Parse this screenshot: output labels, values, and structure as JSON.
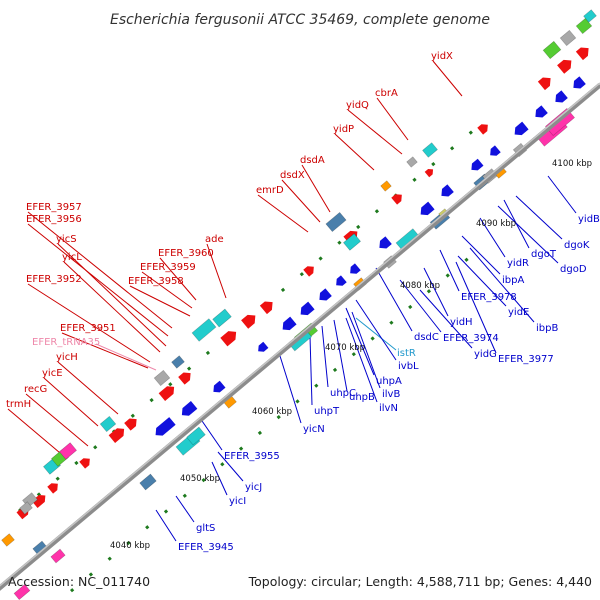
{
  "header": {
    "title": "Escherichia fergusonii ATCC 35469, complete genome"
  },
  "footer": {
    "accession": "Accession: NC_011740",
    "summary": "Topology: circular; Length: 4,588,711 bp; Genes: 4,440"
  },
  "colors": {
    "backbone": "#8c8c8c",
    "forward_label": "#cc0000",
    "reverse_label": "#0000cc",
    "rna_label": "#ee88aa",
    "is_label": "#2299cc",
    "tick": "#1e7a1e",
    "forward_gene": "#ee1111",
    "reverse_gene": "#1111dd",
    "feature_cyan": "#22cccc",
    "feature_steel": "#4a7fab",
    "feature_orange": "#ff9900",
    "feature_green": "#55cc33",
    "feature_pink": "#ff33aa",
    "feature_gray": "#a8a8a8"
  },
  "kbp_markers": [
    "4040 kbp",
    "4050 kbp",
    "4060 kbp",
    "4070 kbp",
    "4080 kbp",
    "4090 kbp",
    "4100 kbp"
  ],
  "forward_labels": [
    "yidX",
    "cbrA",
    "yidQ",
    "yidP",
    "dsdA",
    "dsdX",
    "emrD",
    "ade",
    "EFER_3960",
    "EFER_3959",
    "EFER_3958",
    "EFER_3957",
    "EFER_3956",
    "yicS",
    "yicL",
    "EFER_3952",
    "EFER_3951",
    "yicH",
    "yicE",
    "recG",
    "trmH"
  ],
  "rna_labels": [
    "EFER_tRNA35"
  ],
  "is_labels": [
    "istR"
  ],
  "reverse_labels": [
    "yidB",
    "dgoK",
    "dgoT",
    "dgoD",
    "yidR",
    "ibpA",
    "EFER_3978",
    "ibpB",
    "yidE",
    "yidH",
    "EFER_3974",
    "EFER_3977",
    "yidG",
    "dsdC",
    "ivbL",
    "uhpA",
    "ilvB",
    "ilvN",
    "uhpB",
    "uhpC",
    "uhpT",
    "yicN",
    "EFER_3955",
    "yicJ",
    "yicI",
    "gltS",
    "EFER_3945"
  ]
}
